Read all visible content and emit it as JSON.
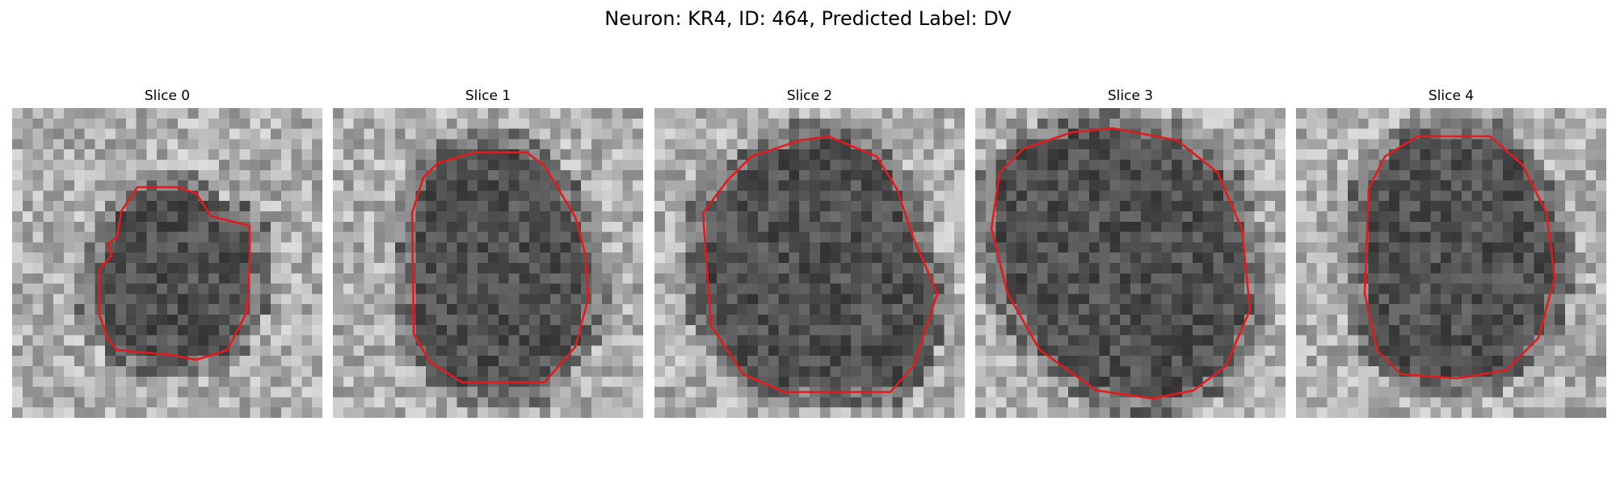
{
  "figure": {
    "title": "Neuron: KR4, ID: 464, Predicted Label: DV"
  },
  "panels": [
    {
      "title": "Slice 0",
      "image_alt": "grayscale microscopy slice with red cell outline"
    },
    {
      "title": "Slice 1",
      "image_alt": "grayscale microscopy slice with red cell outline"
    },
    {
      "title": "Slice 2",
      "image_alt": "grayscale microscopy slice with red cell outline"
    },
    {
      "title": "Slice 3",
      "image_alt": "grayscale microscopy slice with red cell outline"
    },
    {
      "title": "Slice 4",
      "image_alt": "grayscale microscopy slice with red cell outline"
    }
  ],
  "contour_color": "#e41a1c"
}
